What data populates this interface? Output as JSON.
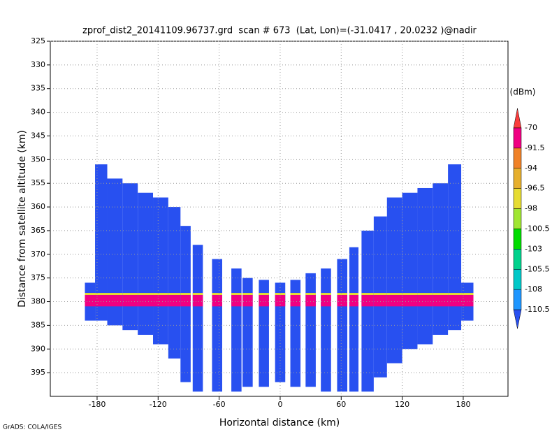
{
  "chart_data": {
    "type": "radar-profile",
    "title": "zprof_dist2_20141109.96737.grd  scan # 673  (Lat, Lon)=(-31.0417 , 20.0232 )@nadir",
    "xlabel": "Horizontal distance (km)",
    "ylabel": "Distance from satellite altitude (km)",
    "footer": "GrADS: COLA/IGES",
    "xlim": [
      -226,
      224
    ],
    "xticks": [
      -180,
      -120,
      -60,
      0,
      60,
      120,
      180
    ],
    "ylim": [
      400,
      325
    ],
    "yticks": [
      325,
      330,
      335,
      340,
      345,
      350,
      355,
      360,
      365,
      370,
      375,
      380,
      385,
      390,
      395
    ],
    "grid": true,
    "field_color": "#2850f0",
    "band_color": "#f00082",
    "band_edge_color": "#e6dc32",
    "band": [
      378.6,
      381
    ],
    "columns": [
      {
        "x": [
          -192,
          -182
        ],
        "y": [
          376,
          384
        ]
      },
      {
        "x": [
          -182,
          -170
        ],
        "y": [
          351,
          384
        ]
      },
      {
        "x": [
          -170,
          -155
        ],
        "y": [
          354,
          385
        ]
      },
      {
        "x": [
          -155,
          -140
        ],
        "y": [
          355,
          386
        ]
      },
      {
        "x": [
          -140,
          -125
        ],
        "y": [
          357,
          387
        ]
      },
      {
        "x": [
          -125,
          -110
        ],
        "y": [
          358,
          389
        ]
      },
      {
        "x": [
          -110,
          -98
        ],
        "y": [
          360,
          392
        ]
      },
      {
        "x": [
          -98,
          -88
        ],
        "y": [
          364,
          397
        ]
      },
      {
        "x": [
          -86,
          -76
        ],
        "y": [
          368,
          399
        ]
      },
      {
        "x": [
          -67,
          -57
        ],
        "y": [
          371,
          399
        ]
      },
      {
        "x": [
          -48,
          -38
        ],
        "y": [
          373,
          399
        ]
      },
      {
        "x": [
          -37,
          -27
        ],
        "y": [
          375,
          398
        ]
      },
      {
        "x": [
          -21,
          -11
        ],
        "y": [
          375.4,
          398
        ]
      },
      {
        "x": [
          -5,
          5
        ],
        "y": [
          376,
          397
        ]
      },
      {
        "x": [
          10,
          20
        ],
        "y": [
          375.4,
          398
        ]
      },
      {
        "x": [
          25,
          35
        ],
        "y": [
          374,
          398
        ]
      },
      {
        "x": [
          40,
          50
        ],
        "y": [
          373,
          399
        ]
      },
      {
        "x": [
          56,
          66
        ],
        "y": [
          371,
          399
        ]
      },
      {
        "x": [
          68,
          77
        ],
        "y": [
          368.5,
          399
        ]
      },
      {
        "x": [
          80,
          92
        ],
        "y": [
          365,
          399
        ]
      },
      {
        "x": [
          92,
          105
        ],
        "y": [
          362,
          396
        ]
      },
      {
        "x": [
          105,
          120
        ],
        "y": [
          358,
          393
        ]
      },
      {
        "x": [
          120,
          135
        ],
        "y": [
          357,
          390
        ]
      },
      {
        "x": [
          135,
          150
        ],
        "y": [
          356,
          389
        ]
      },
      {
        "x": [
          150,
          165
        ],
        "y": [
          355,
          387
        ]
      },
      {
        "x": [
          165,
          178
        ],
        "y": [
          351,
          386
        ]
      },
      {
        "x": [
          178,
          190
        ],
        "y": [
          376,
          384
        ]
      }
    ],
    "colorbar": {
      "label": "(dBm)",
      "levels": [
        -70,
        -91.5,
        -94,
        -96.5,
        -98,
        -100.5,
        -103,
        -105.5,
        -108,
        -110.5
      ],
      "colors": [
        "#fa3c3c",
        "#f00082",
        "#f08228",
        "#e6af2d",
        "#e6dc32",
        "#a0e632",
        "#00dc00",
        "#00d28c",
        "#00c8c8",
        "#1e96ff",
        "#2850f0"
      ]
    }
  }
}
